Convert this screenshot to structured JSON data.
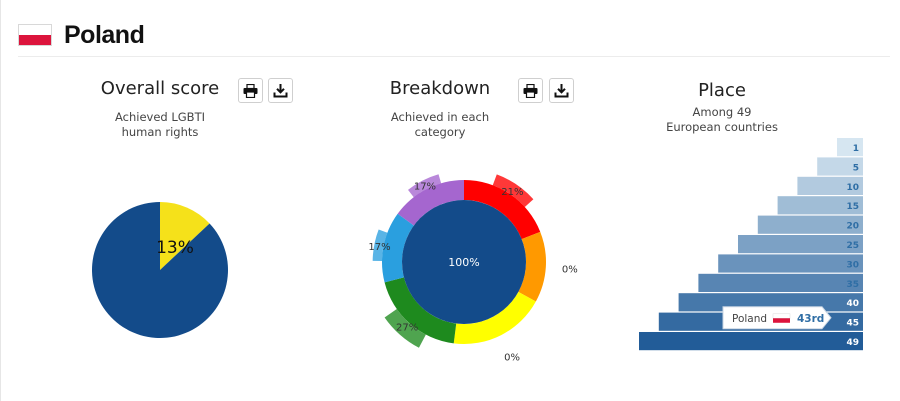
{
  "country": {
    "name": "Poland",
    "flag_colors": [
      "#ffffff",
      "#dc143c"
    ]
  },
  "panels": {
    "overall": {
      "title": "Overall score",
      "subtitle_line1": "Achieved LGBTI",
      "subtitle_line2": "human rights",
      "print_icon": "printer-icon",
      "download_icon": "download-icon"
    },
    "breakdown": {
      "title": "Breakdown",
      "subtitle_line1": "Achieved in each",
      "subtitle_line2": "category",
      "print_icon": "printer-icon",
      "download_icon": "download-icon"
    },
    "place": {
      "title": "Place",
      "subtitle_line1": "Among 49",
      "subtitle_line2": "European countries"
    }
  },
  "colors": {
    "pie_main": "#134b8a",
    "pie_achieved": "#f5e11a",
    "rank_marker": "#2f6ea5"
  },
  "chart_data": [
    {
      "type": "pie",
      "slices": [
        {
          "label": "13%",
          "value": 13,
          "color": "#f5e11a"
        },
        {
          "value": 87,
          "color": "#134b8a"
        }
      ]
    },
    {
      "type": "pie",
      "center_label": "100%",
      "segments": [
        {
          "label": "21%",
          "value": 21,
          "color": "#ff0000",
          "share": 0.19
        },
        {
          "label": "0%",
          "value": 0,
          "color": "#ff9900",
          "share": 0.14
        },
        {
          "label": "0%",
          "value": 0,
          "color": "#ffff00",
          "share": 0.19
        },
        {
          "label": "27%",
          "value": 27,
          "color": "#1e8a1e",
          "share": 0.19
        },
        {
          "label": "17%",
          "value": 17,
          "color": "#2a9fdf",
          "share": 0.14
        },
        {
          "label": "17%",
          "value": 17,
          "color": "#a566cf",
          "share": 0.15
        }
      ]
    },
    {
      "type": "bar",
      "categories": [
        "1",
        "5",
        "10",
        "15",
        "20",
        "25",
        "30",
        "35",
        "40",
        "45",
        "49"
      ],
      "highlight": {
        "country": "Poland",
        "rank_label": "43rd",
        "rank": 43
      }
    }
  ]
}
